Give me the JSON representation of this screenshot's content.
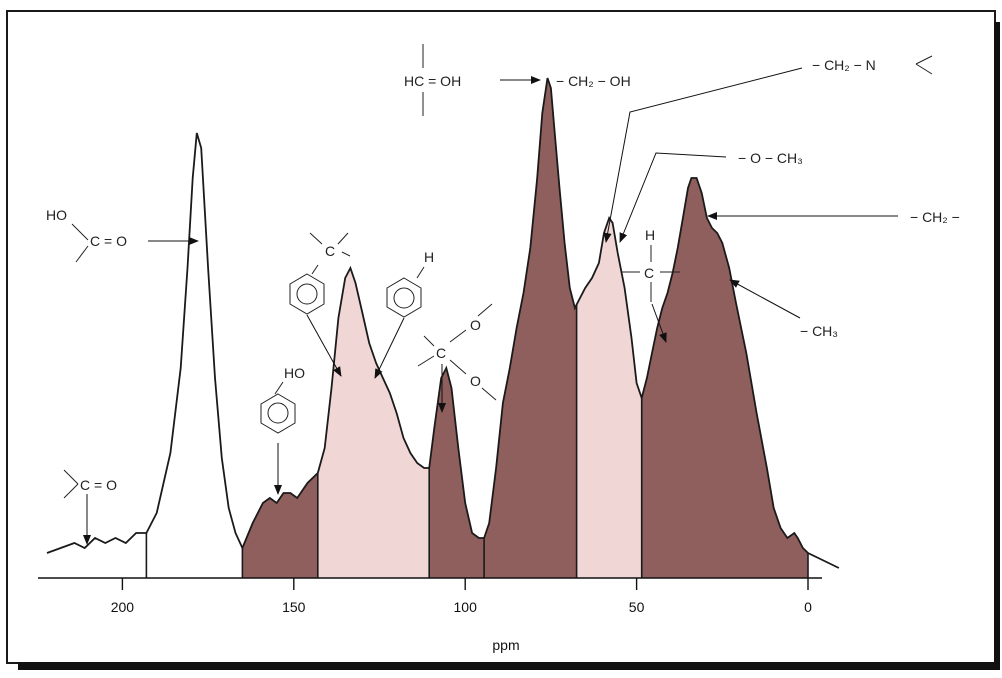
{
  "chart_data": {
    "type": "area",
    "xlabel": "ppm",
    "xlim": [
      225,
      -10
    ],
    "x_ticks": [
      200,
      150,
      100,
      50,
      0
    ],
    "x_tick_labels": [
      "200",
      "150",
      "100",
      "50",
      "0"
    ],
    "region_colors": {
      "dark": "#8f5f5d",
      "light": "#f1d6d6",
      "white": "#ffffff"
    },
    "curve": [
      [
        222,
        0.05
      ],
      [
        218,
        0.06
      ],
      [
        214,
        0.07
      ],
      [
        211,
        0.06
      ],
      [
        208,
        0.08
      ],
      [
        205,
        0.07
      ],
      [
        202,
        0.08
      ],
      [
        199,
        0.07
      ],
      [
        196,
        0.09
      ],
      [
        194,
        0.09
      ],
      [
        193,
        0.09
      ],
      [
        190,
        0.13
      ],
      [
        186,
        0.25
      ],
      [
        183,
        0.42
      ],
      [
        181,
        0.62
      ],
      [
        179.5,
        0.8
      ],
      [
        178.3,
        0.89
      ],
      [
        177,
        0.86
      ],
      [
        175,
        0.62
      ],
      [
        173,
        0.4
      ],
      [
        171,
        0.24
      ],
      [
        169,
        0.14
      ],
      [
        167,
        0.09
      ],
      [
        165,
        0.06
      ],
      [
        162,
        0.11
      ],
      [
        159,
        0.15
      ],
      [
        157,
        0.16
      ],
      [
        155,
        0.15
      ],
      [
        153,
        0.17
      ],
      [
        151,
        0.17
      ],
      [
        149,
        0.16
      ],
      [
        146,
        0.19
      ],
      [
        143,
        0.21
      ],
      [
        141,
        0.26
      ],
      [
        139,
        0.38
      ],
      [
        137,
        0.52
      ],
      [
        135,
        0.6
      ],
      [
        133.5,
        0.62
      ],
      [
        132,
        0.59
      ],
      [
        130,
        0.53
      ],
      [
        128,
        0.47
      ],
      [
        126,
        0.43
      ],
      [
        124,
        0.4
      ],
      [
        122,
        0.37
      ],
      [
        120,
        0.33
      ],
      [
        118,
        0.28
      ],
      [
        116,
        0.25
      ],
      [
        114,
        0.23
      ],
      [
        112,
        0.22
      ],
      [
        110.5,
        0.22
      ],
      [
        109,
        0.3
      ],
      [
        107,
        0.4
      ],
      [
        105.5,
        0.42
      ],
      [
        104,
        0.38
      ],
      [
        102,
        0.26
      ],
      [
        100,
        0.15
      ],
      [
        98,
        0.09
      ],
      [
        96,
        0.08
      ],
      [
        94.5,
        0.08
      ],
      [
        93,
        0.11
      ],
      [
        91,
        0.22
      ],
      [
        89,
        0.35
      ],
      [
        87,
        0.42
      ],
      [
        85,
        0.5
      ],
      [
        83,
        0.57
      ],
      [
        81,
        0.66
      ],
      [
        79,
        0.8
      ],
      [
        77.5,
        0.93
      ],
      [
        76,
        1.0
      ],
      [
        75,
        0.98
      ],
      [
        74,
        0.9
      ],
      [
        72.5,
        0.78
      ],
      [
        71,
        0.67
      ],
      [
        69.5,
        0.58
      ],
      [
        68,
        0.54
      ],
      [
        66.5,
        0.56
      ],
      [
        65,
        0.58
      ],
      [
        63,
        0.6
      ],
      [
        61,
        0.63
      ],
      [
        59.5,
        0.69
      ],
      [
        58,
        0.72
      ],
      [
        57,
        0.71
      ],
      [
        55.5,
        0.65
      ],
      [
        53.5,
        0.58
      ],
      [
        51.5,
        0.48
      ],
      [
        50,
        0.39
      ],
      [
        48.5,
        0.36
      ],
      [
        47,
        0.4
      ],
      [
        45.5,
        0.45
      ],
      [
        44,
        0.5
      ],
      [
        42.5,
        0.54
      ],
      [
        41,
        0.57
      ],
      [
        39.5,
        0.61
      ],
      [
        38,
        0.66
      ],
      [
        36.5,
        0.72
      ],
      [
        35,
        0.78
      ],
      [
        34,
        0.8
      ],
      [
        32.5,
        0.8
      ],
      [
        31,
        0.77
      ],
      [
        29.5,
        0.72
      ],
      [
        28,
        0.7
      ],
      [
        26.5,
        0.69
      ],
      [
        25,
        0.67
      ],
      [
        23,
        0.62
      ],
      [
        21,
        0.55
      ],
      [
        18,
        0.45
      ],
      [
        15,
        0.33
      ],
      [
        12,
        0.22
      ],
      [
        10,
        0.14
      ],
      [
        8,
        0.1
      ],
      [
        6,
        0.08
      ],
      [
        4,
        0.09
      ],
      [
        3,
        0.08
      ],
      [
        1.5,
        0.06
      ],
      [
        0,
        0.05
      ],
      [
        -3,
        0.04
      ],
      [
        -6,
        0.03
      ],
      [
        -9,
        0.02
      ]
    ],
    "regions": [
      {
        "from": 193,
        "to": 165,
        "color": "white"
      },
      {
        "from": 165,
        "to": 143,
        "color": "dark"
      },
      {
        "from": 143,
        "to": 110.5,
        "color": "light"
      },
      {
        "from": 110.5,
        "to": 94.5,
        "color": "dark"
      },
      {
        "from": 94.5,
        "to": 67.5,
        "color": "dark"
      },
      {
        "from": 67.5,
        "to": 48.5,
        "color": "light"
      },
      {
        "from": 48.5,
        "to": 0,
        "color": "dark"
      }
    ],
    "annotations": {
      "ketone": "C = O",
      "carboxyl_ho": "HO",
      "carboxyl": "C = O",
      "phenol_ho": "HO",
      "aryl_c": "C",
      "aryl_h": "H",
      "acetal_o1": "O",
      "acetal_c": "C",
      "acetal_o2": "O",
      "hcoh": "HC = OH",
      "ch2oh": "− CH₂ − OH",
      "ch2n": "− CH₂ − N",
      "och3": "− O − CH₃",
      "ch_h": "H",
      "ch_c": "C",
      "ch2": "− CH₂ −",
      "ch3": "− CH₃"
    }
  }
}
